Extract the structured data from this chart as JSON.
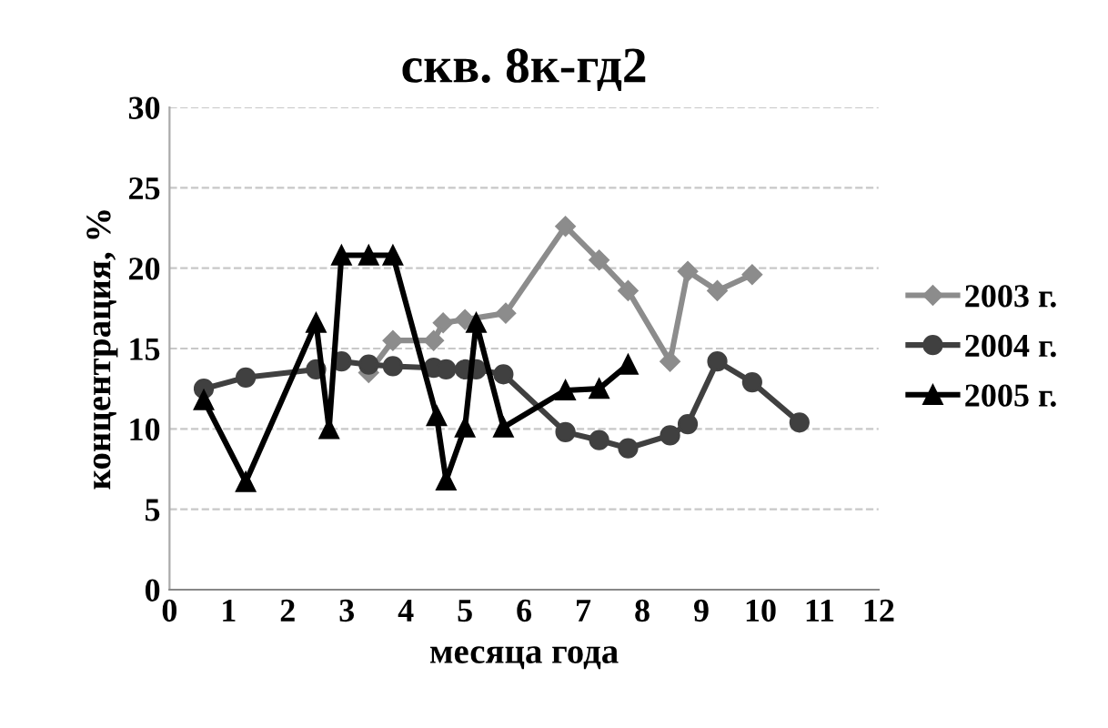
{
  "chart_data": {
    "type": "line",
    "title": "скв. 8к-гд2",
    "xlabel": "месяца года",
    "ylabel": "концентрация, %",
    "xlim": [
      0,
      12
    ],
    "xticks": [
      0,
      1,
      2,
      3,
      4,
      5,
      6,
      7,
      8,
      9,
      10,
      11,
      12
    ],
    "ylim": [
      0,
      30
    ],
    "yticks": [
      0,
      5,
      10,
      15,
      20,
      25,
      30
    ],
    "grid": "y",
    "legend": "right",
    "series": [
      {
        "name": "2003 г.",
        "color": "#8c8c8c",
        "marker": "diamond",
        "x": [
          3.37,
          3.78,
          4.47,
          4.63,
          5.0,
          5.69,
          6.7,
          7.27,
          7.76,
          8.47,
          8.77,
          9.27,
          9.86
        ],
        "values": [
          13.5,
          15.5,
          15.5,
          16.6,
          16.8,
          17.2,
          22.6,
          20.5,
          18.6,
          14.2,
          19.8,
          18.6,
          19.6
        ]
      },
      {
        "name": "2004 г.",
        "color": "#404040",
        "marker": "circle",
        "x": [
          0.58,
          1.29,
          2.48,
          2.7,
          2.91,
          3.37,
          3.78,
          4.47,
          4.68,
          5.0,
          5.19,
          5.65,
          6.7,
          7.27,
          7.76,
          8.47,
          8.77,
          9.27,
          9.86,
          10.66
        ],
        "values": [
          12.5,
          13.2,
          13.7,
          null,
          14.2,
          14.0,
          13.9,
          13.8,
          13.7,
          13.7,
          13.7,
          13.4,
          9.8,
          9.3,
          8.8,
          9.6,
          10.3,
          14.2,
          12.9,
          10.4
        ]
      },
      {
        "name": "2005 г.",
        "color": "#000000",
        "marker": "triangle",
        "x": [
          0.58,
          1.29,
          2.48,
          2.7,
          2.91,
          3.37,
          3.78,
          4.52,
          4.68,
          5.0,
          5.19,
          5.65,
          6.7,
          7.27,
          7.76
        ],
        "values": [
          11.8,
          6.7,
          16.6,
          10.0,
          20.8,
          20.8,
          20.8,
          10.8,
          6.8,
          10.1,
          16.6,
          10.1,
          12.4,
          12.5,
          14.0
        ]
      }
    ]
  }
}
